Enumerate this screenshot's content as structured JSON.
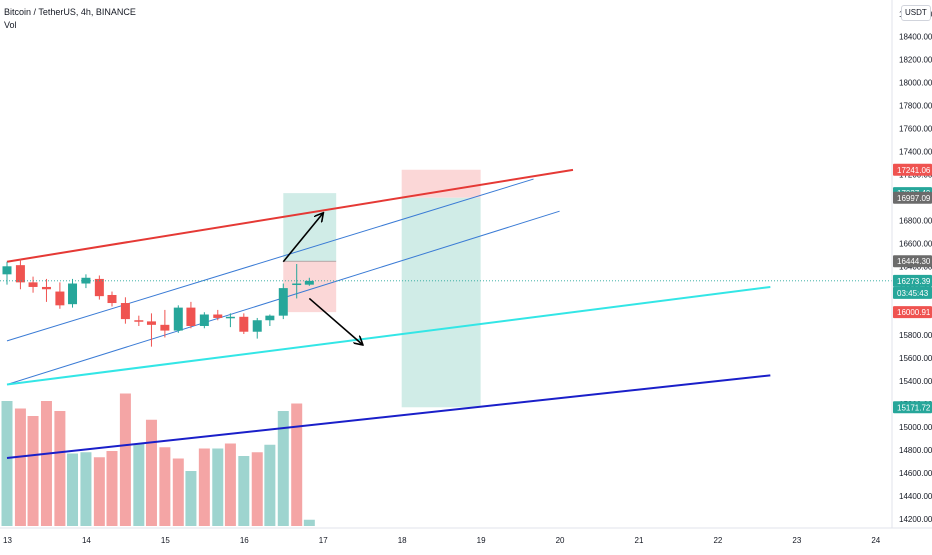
{
  "header": {
    "symbol_title": "Bitcoin / TetherUS, 4h, BINANCE",
    "volume_label": "Vol",
    "currency_button": "USDT"
  },
  "colors": {
    "bull": "#26a69a",
    "bear": "#ef5350",
    "vol_bull": "#9ed4cf",
    "vol_bear": "#f4a5a5",
    "upper_red_line": "#e53935",
    "channel_lines": "#3a7bd5",
    "cyan_line": "#33e6e6",
    "navy_line": "#1a1fc9",
    "long_profit_zone": "#cdebe6",
    "long_stop_zone": "#fbd5d5",
    "price_line": "#26a69a"
  },
  "chart_data": {
    "type": "candlestick",
    "title": "Bitcoin / TetherUS, 4h, BINANCE",
    "x_axis": {
      "unit": "day (4h bars)",
      "range": [
        13,
        24.3
      ],
      "tick_labels": [
        "13",
        "14",
        "15",
        "16",
        "17",
        "18",
        "19",
        "20",
        "21",
        "22",
        "23",
        "24"
      ],
      "tick_values": [
        13,
        14,
        15,
        16,
        17,
        18,
        19,
        20,
        21,
        22,
        23,
        24
      ]
    },
    "y_axis": {
      "currency": "USDT",
      "range": [
        14120,
        18720
      ],
      "tick_labels": [
        "14200.00",
        "14400.00",
        "14600.00",
        "14800.00",
        "15000.00",
        "15200.00",
        "15400.00",
        "15600.00",
        "15800.00",
        "16000.00",
        "16200.00",
        "16400.00",
        "16600.00",
        "16800.00",
        "17000.00",
        "17200.00",
        "17400.00",
        "17600.00",
        "17800.00",
        "18000.00",
        "18200.00",
        "18400.00",
        "18600.00"
      ],
      "tick_values": [
        14200,
        14400,
        14600,
        14800,
        15000,
        15200,
        15400,
        15600,
        15800,
        16000,
        16200,
        16400,
        16600,
        16800,
        17000,
        17200,
        17400,
        17600,
        17800,
        18000,
        18200,
        18400,
        18600
      ],
      "grid": false
    },
    "candles": [
      {
        "t": 13.0,
        "o": 16330,
        "h": 16440,
        "l": 16240,
        "c": 16400
      },
      {
        "t": 13.17,
        "o": 16410,
        "h": 16460,
        "l": 16200,
        "c": 16260
      },
      {
        "t": 13.33,
        "o": 16260,
        "h": 16310,
        "l": 16170,
        "c": 16220
      },
      {
        "t": 13.5,
        "o": 16220,
        "h": 16290,
        "l": 16090,
        "c": 16200
      },
      {
        "t": 13.67,
        "o": 16180,
        "h": 16260,
        "l": 16030,
        "c": 16060
      },
      {
        "t": 13.83,
        "o": 16070,
        "h": 16290,
        "l": 16040,
        "c": 16250
      },
      {
        "t": 14.0,
        "o": 16250,
        "h": 16330,
        "l": 16210,
        "c": 16300
      },
      {
        "t": 14.17,
        "o": 16290,
        "h": 16320,
        "l": 16110,
        "c": 16140
      },
      {
        "t": 14.33,
        "o": 16150,
        "h": 16180,
        "l": 16050,
        "c": 16080
      },
      {
        "t": 14.5,
        "o": 16080,
        "h": 16130,
        "l": 15900,
        "c": 15940
      },
      {
        "t": 14.67,
        "o": 15930,
        "h": 15970,
        "l": 15880,
        "c": 15920
      },
      {
        "t": 14.83,
        "o": 15920,
        "h": 15990,
        "l": 15700,
        "c": 15890
      },
      {
        "t": 15.0,
        "o": 15890,
        "h": 16020,
        "l": 15780,
        "c": 15840
      },
      {
        "t": 15.17,
        "o": 15840,
        "h": 16060,
        "l": 15820,
        "c": 16040
      },
      {
        "t": 15.33,
        "o": 16040,
        "h": 16090,
        "l": 15860,
        "c": 15880
      },
      {
        "t": 15.5,
        "o": 15880,
        "h": 16000,
        "l": 15860,
        "c": 15980
      },
      {
        "t": 15.67,
        "o": 15980,
        "h": 16020,
        "l": 15930,
        "c": 15950
      },
      {
        "t": 15.83,
        "o": 15950,
        "h": 15990,
        "l": 15870,
        "c": 15960
      },
      {
        "t": 16.0,
        "o": 15960,
        "h": 15990,
        "l": 15810,
        "c": 15830
      },
      {
        "t": 16.17,
        "o": 15830,
        "h": 15950,
        "l": 15770,
        "c": 15930
      },
      {
        "t": 16.33,
        "o": 15930,
        "h": 15980,
        "l": 15880,
        "c": 15970
      },
      {
        "t": 16.5,
        "o": 15970,
        "h": 16250,
        "l": 15940,
        "c": 16210
      },
      {
        "t": 16.67,
        "o": 16240,
        "h": 16420,
        "l": 16120,
        "c": 16250
      },
      {
        "t": 16.83,
        "o": 16240,
        "h": 16300,
        "l": 16230,
        "c": 16273
      }
    ],
    "volume": [
      {
        "t": 13.0,
        "up": true,
        "v": 1.0
      },
      {
        "t": 13.17,
        "up": false,
        "v": 0.94
      },
      {
        "t": 13.33,
        "up": false,
        "v": 0.88
      },
      {
        "t": 13.5,
        "up": false,
        "v": 1.0
      },
      {
        "t": 13.67,
        "up": false,
        "v": 0.92
      },
      {
        "t": 13.83,
        "up": true,
        "v": 0.58
      },
      {
        "t": 14.0,
        "up": true,
        "v": 0.59
      },
      {
        "t": 14.17,
        "up": false,
        "v": 0.55
      },
      {
        "t": 14.33,
        "up": false,
        "v": 0.6
      },
      {
        "t": 14.5,
        "up": false,
        "v": 1.06
      },
      {
        "t": 14.67,
        "up": true,
        "v": 0.66
      },
      {
        "t": 14.83,
        "up": false,
        "v": 0.85
      },
      {
        "t": 15.0,
        "up": false,
        "v": 0.63
      },
      {
        "t": 15.17,
        "up": false,
        "v": 0.54
      },
      {
        "t": 15.33,
        "up": true,
        "v": 0.44
      },
      {
        "t": 15.5,
        "up": false,
        "v": 0.62
      },
      {
        "t": 15.67,
        "up": true,
        "v": 0.62
      },
      {
        "t": 15.83,
        "up": false,
        "v": 0.66
      },
      {
        "t": 16.0,
        "up": true,
        "v": 0.56
      },
      {
        "t": 16.17,
        "up": false,
        "v": 0.59
      },
      {
        "t": 16.33,
        "up": true,
        "v": 0.65
      },
      {
        "t": 16.5,
        "up": true,
        "v": 0.92
      },
      {
        "t": 16.67,
        "up": false,
        "v": 0.98
      },
      {
        "t": 16.83,
        "up": true,
        "v": 0.05
      }
    ],
    "trend_lines": [
      {
        "name": "upper-red-line",
        "color": "#e53935",
        "width": 2,
        "p1": [
          13.0,
          16440
        ],
        "p2": [
          20.17,
          17240
        ]
      },
      {
        "name": "channel-upper-line",
        "color": "#3a7bd5",
        "width": 1,
        "p1": [
          13.0,
          15750
        ],
        "p2": [
          19.67,
          17160
        ]
      },
      {
        "name": "channel-lower-line",
        "color": "#3a7bd5",
        "width": 1,
        "p1": [
          13.0,
          15370
        ],
        "p2": [
          20.0,
          16880
        ]
      },
      {
        "name": "cyan-support-line",
        "color": "#33e6e6",
        "width": 2,
        "p1": [
          13.0,
          15370
        ],
        "p2": [
          22.67,
          16220
        ]
      },
      {
        "name": "navy-support-line",
        "color": "#1a1fc9",
        "width": 2,
        "p1": [
          13.0,
          14730
        ],
        "p2": [
          22.67,
          15450
        ]
      }
    ],
    "position_zones": [
      {
        "name": "long-target-zone",
        "color": "#cdebe6",
        "t1": 16.5,
        "t2": 17.17,
        "p1": 16444.3,
        "p2": 17037.4
      },
      {
        "name": "long-stop-zone",
        "color": "#fbd5d5",
        "t1": 16.5,
        "t2": 17.17,
        "p1": 16000.91,
        "p2": 16444.3
      },
      {
        "name": "short-stop-zone",
        "color": "#fbd5d5",
        "t1": 18.0,
        "t2": 19.0,
        "p1": 16997.09,
        "p2": 17241.06
      },
      {
        "name": "short-target-zone",
        "color": "#cdebe6",
        "t1": 18.0,
        "t2": 19.0,
        "p1": 15171.72,
        "p2": 16997.09
      }
    ],
    "arrows": [
      {
        "name": "up-arrow",
        "from": [
          16.5,
          16440
        ],
        "to": [
          17.0,
          16860
        ]
      },
      {
        "name": "down-arrow",
        "from": [
          16.83,
          16120
        ],
        "to": [
          17.5,
          15720
        ]
      }
    ],
    "price_labels": [
      {
        "text": "17241.06",
        "price": 17241.06,
        "color": "#ef5350",
        "fg": "#ffffff"
      },
      {
        "text": "17037.40",
        "price": 17037.4,
        "color": "#26a69a",
        "fg": "#ffffff"
      },
      {
        "text": "16997.09",
        "price": 16997.09,
        "color": "#6b6b6b",
        "fg": "#ffffff"
      },
      {
        "text": "16444.30",
        "price": 16444.3,
        "color": "#6b6b6b",
        "fg": "#ffffff"
      },
      {
        "text": "16273.39",
        "price": 16273.39,
        "color": "#26a69a",
        "fg": "#ffffff"
      },
      {
        "text": "16000.91",
        "price": 16000.91,
        "color": "#ef5350",
        "fg": "#ffffff"
      },
      {
        "text": "15171.72",
        "price": 15171.72,
        "color": "#26a69a",
        "fg": "#ffffff"
      }
    ],
    "countdown": "03:45:43",
    "last_price": 16273.39
  }
}
